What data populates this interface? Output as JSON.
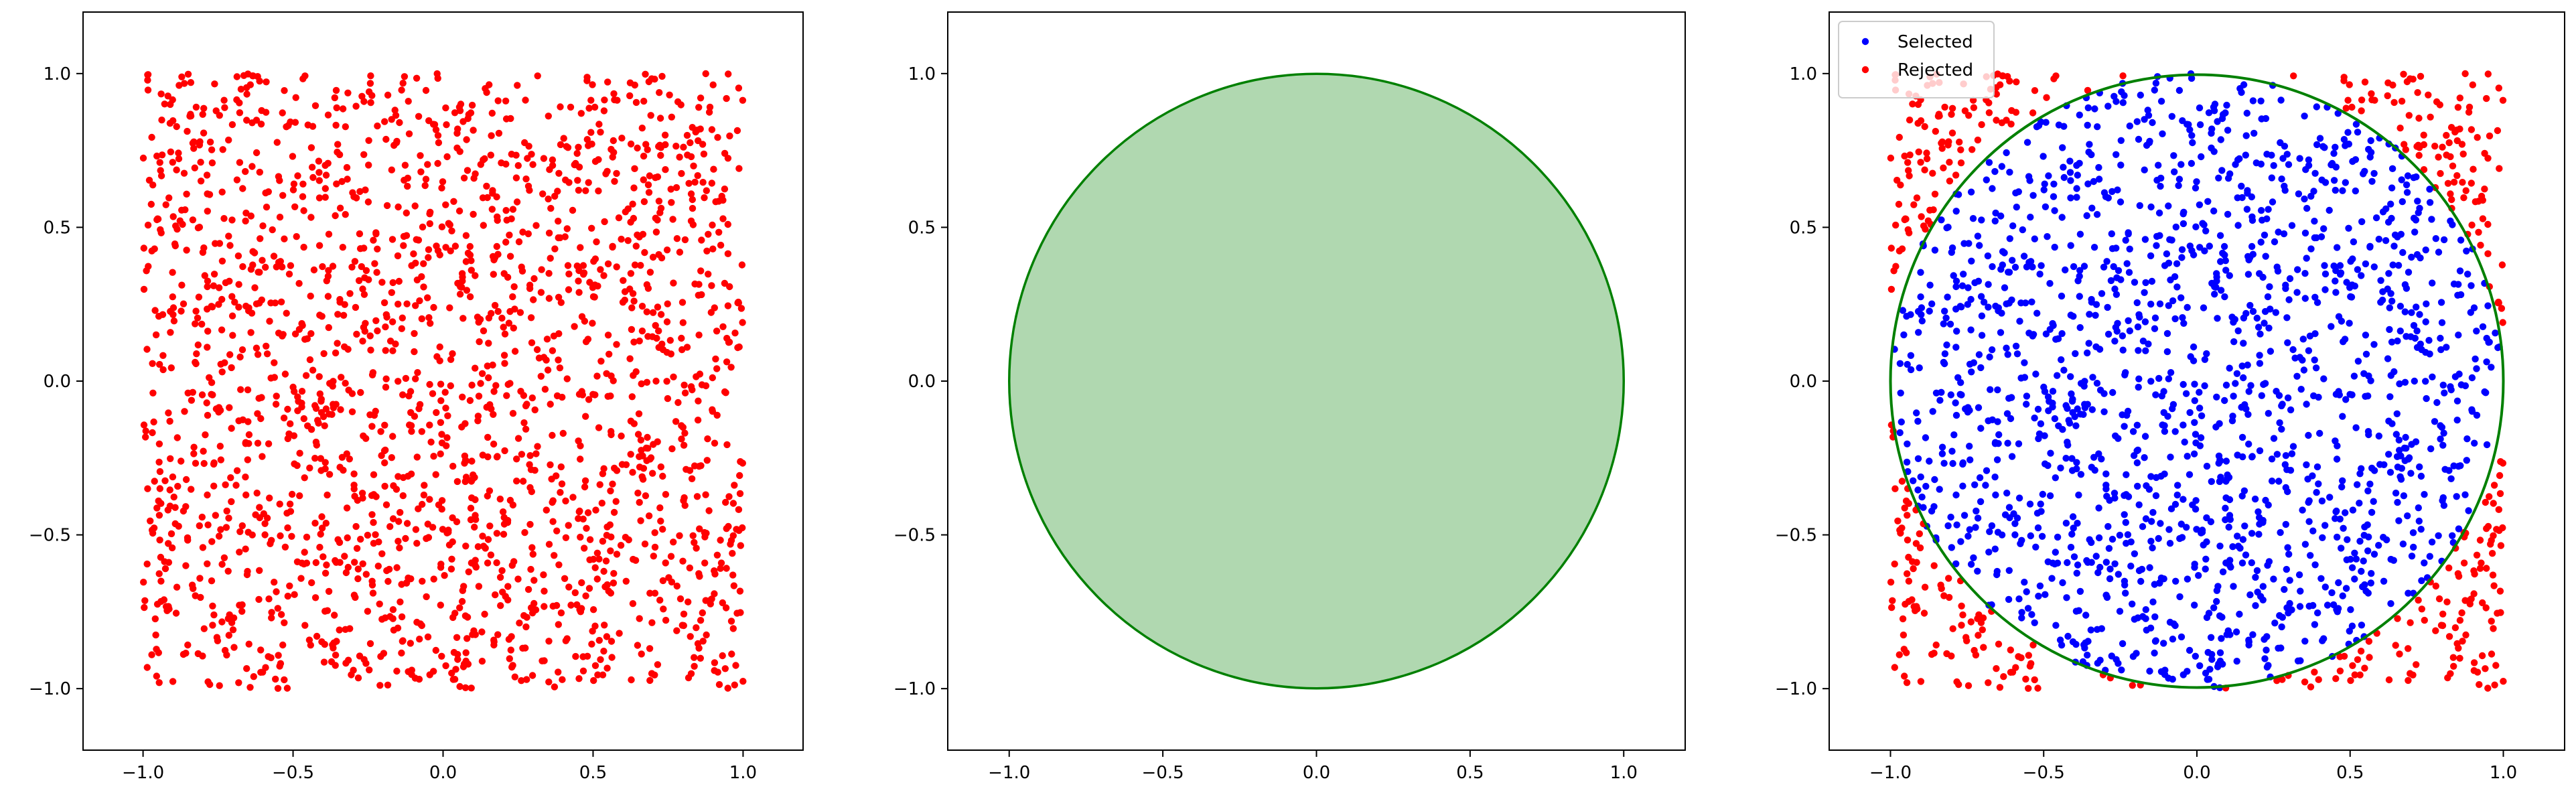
{
  "chart_data": [
    {
      "type": "scatter",
      "title": "",
      "xlabel": "",
      "ylabel": "",
      "xlim": [
        -1.2,
        1.2
      ],
      "ylim": [
        -1.2,
        1.2
      ],
      "xticks": [
        -1.0,
        -0.5,
        0.0,
        0.5,
        1.0
      ],
      "yticks": [
        -1.0,
        -0.5,
        0.0,
        0.5,
        1.0
      ],
      "xtick_labels": [
        "−1.0",
        "−0.5",
        "0.0",
        "0.5",
        "1.0"
      ],
      "ytick_labels": [
        "−1.0",
        "−0.5",
        "0.0",
        "0.5",
        "1.0"
      ],
      "grid": false,
      "legend": null,
      "series": [
        {
          "point_color": "#ff0000",
          "distribution": "uniform",
          "x_range": [
            -1.0,
            1.0
          ],
          "y_range": [
            -1.0,
            1.0
          ],
          "n_points": 2000,
          "seed": 7
        }
      ]
    },
    {
      "type": "area",
      "title": "",
      "xlabel": "",
      "ylabel": "",
      "xlim": [
        -1.2,
        1.2
      ],
      "ylim": [
        -1.2,
        1.2
      ],
      "xticks": [
        -1.0,
        -0.5,
        0.0,
        0.5,
        1.0
      ],
      "yticks": [
        -1.0,
        -0.5,
        0.0,
        0.5,
        1.0
      ],
      "xtick_labels": [
        "−1.0",
        "−0.5",
        "0.0",
        "0.5",
        "1.0"
      ],
      "ytick_labels": [
        "−1.0",
        "−0.5",
        "0.0",
        "0.5",
        "1.0"
      ],
      "grid": false,
      "legend": null,
      "shapes": [
        {
          "shape": "circle",
          "center": [
            0.0,
            0.0
          ],
          "radius": 1.0,
          "fill_color": "#b0d8b0",
          "edge_color": "#008000"
        }
      ]
    },
    {
      "type": "scatter",
      "title": "",
      "xlabel": "",
      "ylabel": "",
      "xlim": [
        -1.2,
        1.2
      ],
      "ylim": [
        -1.2,
        1.2
      ],
      "xticks": [
        -1.0,
        -0.5,
        0.0,
        0.5,
        1.0
      ],
      "yticks": [
        -1.0,
        -0.5,
        0.0,
        0.5,
        1.0
      ],
      "xtick_labels": [
        "−1.0",
        "−0.5",
        "0.0",
        "0.5",
        "1.0"
      ],
      "ytick_labels": [
        "−1.0",
        "−0.5",
        "0.0",
        "0.5",
        "1.0"
      ],
      "grid": false,
      "legend": "top-left",
      "series": [
        {
          "name": "Selected",
          "point_color": "#0000ff",
          "rule": "x^2 + y^2 <= 1",
          "distribution": "uniform",
          "x_range": [
            -1.0,
            1.0
          ],
          "y_range": [
            -1.0,
            1.0
          ],
          "n_points": 2000,
          "seed": 7
        },
        {
          "name": "Rejected",
          "point_color": "#ff0000",
          "rule": "x^2 + y^2 > 1"
        }
      ],
      "shapes": [
        {
          "shape": "circle",
          "center": [
            0.0,
            0.0
          ],
          "radius": 1.0,
          "fill_color": "none",
          "edge_color": "#008000"
        }
      ]
    }
  ]
}
